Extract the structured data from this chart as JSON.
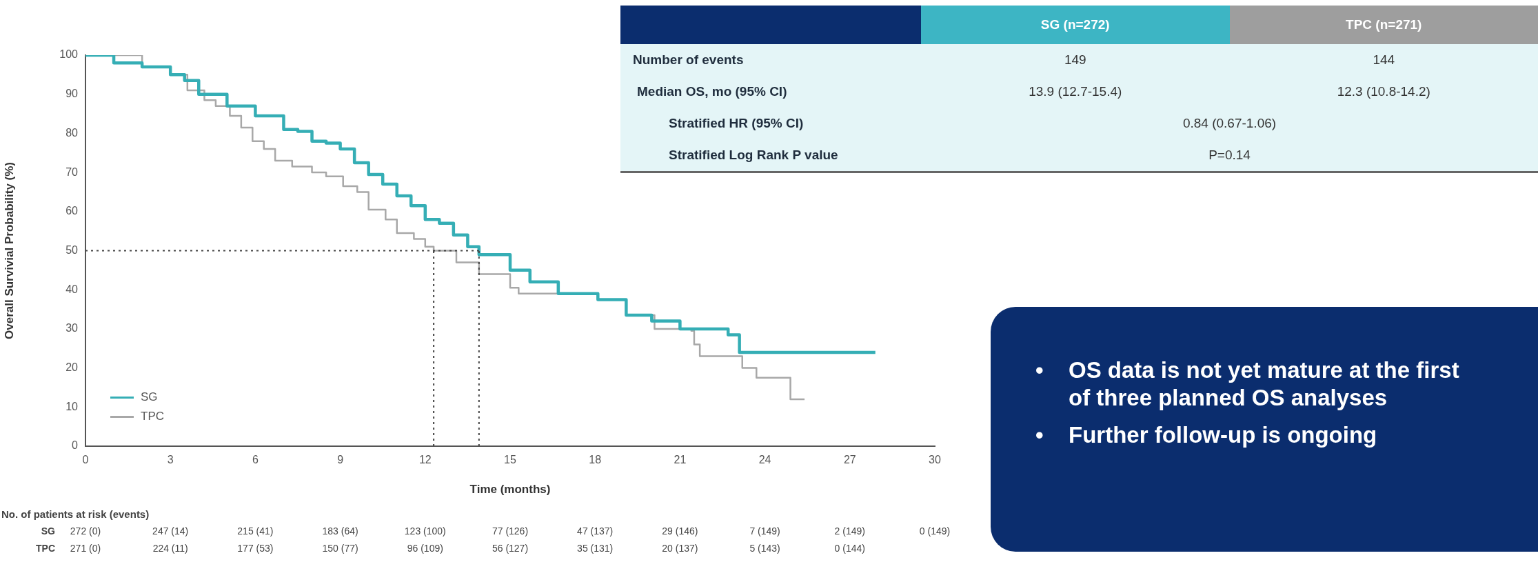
{
  "chart_data": [
    {
      "type": "step",
      "xlabel": "Time (months)",
      "ylabel": "Overall Survivial Probability (%)",
      "xlim": [
        0,
        30
      ],
      "xticks": [
        0,
        3,
        6,
        9,
        12,
        15,
        18,
        21,
        24,
        27,
        30
      ],
      "ylim": [
        0,
        100
      ],
      "yticks": [
        0,
        10,
        20,
        30,
        40,
        50,
        60,
        70,
        80,
        90,
        100
      ],
      "grid": false,
      "legend": "bottom left",
      "line_style": "solid",
      "series": [
        {
          "name": "SG",
          "color": "#35aeb5",
          "x": [
            0,
            1,
            2,
            3,
            3.5,
            4,
            5,
            6,
            7,
            7.5,
            8,
            8.5,
            9,
            9.5,
            10,
            10.5,
            11,
            11.5,
            12,
            12.5,
            13,
            13.5,
            13.9,
            15,
            15.7,
            16.7,
            18.1,
            19.1,
            20,
            20.7,
            21,
            21.6,
            22.7,
            23.1,
            27.9
          ],
          "values": [
            100,
            98,
            97,
            95,
            93.5,
            90,
            87,
            84.5,
            81,
            80.5,
            78,
            77.5,
            76,
            72.5,
            69.5,
            67,
            64,
            61.5,
            58,
            57,
            54,
            51,
            49,
            45,
            42,
            39,
            37.5,
            33.5,
            32,
            32,
            30,
            30,
            28.5,
            24,
            24
          ]
        },
        {
          "name": "TPC",
          "color": "#a8a8a8",
          "x": [
            0,
            2,
            3,
            3.6,
            4.2,
            4.6,
            5.1,
            5.5,
            5.9,
            6.3,
            6.7,
            7.3,
            8,
            8.5,
            9.1,
            9.6,
            10,
            10.6,
            11,
            11.6,
            12,
            12.3,
            13.1,
            13.9,
            15,
            15.3,
            16.7,
            18.1,
            19.1,
            20.1,
            21.4,
            21.5,
            21.7,
            23.1,
            23.2,
            23.7,
            24.9,
            25.4
          ],
          "values": [
            100,
            97,
            95,
            91,
            88.5,
            87,
            84.5,
            81.5,
            78,
            76,
            73,
            71.5,
            70,
            69,
            66.5,
            65,
            60.5,
            58,
            54.5,
            53,
            51,
            50,
            47,
            44,
            40.5,
            39,
            39,
            37.5,
            33.5,
            30,
            29.5,
            26,
            23,
            23,
            20,
            17.5,
            12,
            12
          ]
        }
      ],
      "ref_lines": [
        {
          "axis": "y",
          "value": 50,
          "line_style": "dotted",
          "color": "#444444"
        },
        {
          "axis": "x",
          "value": 12.3,
          "line_style": "dotted",
          "color": "#444444"
        },
        {
          "axis": "x",
          "value": 13.9,
          "line_style": "dotted",
          "color": "#444444"
        }
      ],
      "annotations": [
        "No. of patients at risk (events)",
        "SG",
        "272 (0)",
        "247 (14)",
        "215 (41)",
        "183 (64)",
        "123 (100)",
        "77 (126)",
        "47 (137)",
        "29 (146)",
        "7 (149)",
        "2 (149)",
        "0 (149)",
        "TPC",
        "271 (0)",
        "224 (11)",
        "177 (53)",
        "150 (77)",
        "96 (109)",
        "56 (127)",
        "35 (131)",
        "20 (137)",
        "5 (143)",
        "0 (144)"
      ]
    },
    {
      "type": "other",
      "categories": [
        "SG (n=272)",
        "TPC (n=271)"
      ],
      "colors": [
        "#3db5c4",
        "#9e9e9e"
      ],
      "annotations": [
        "Number of events",
        "149",
        "144",
        "Median OS, mo (95% CI)",
        "13.9 (12.7-15.4)",
        "12.3 (10.8-14.2)",
        "Stratified HR (95% CI)",
        "0.84 (0.67-1.06)",
        "Stratified Log Rank P value",
        "P=0.14"
      ]
    },
    {
      "type": "other",
      "annotations": [
        "• OS data is not yet mature at the first of three planned OS analyses",
        "• Further follow-up is ongoing"
      ]
    }
  ]
}
